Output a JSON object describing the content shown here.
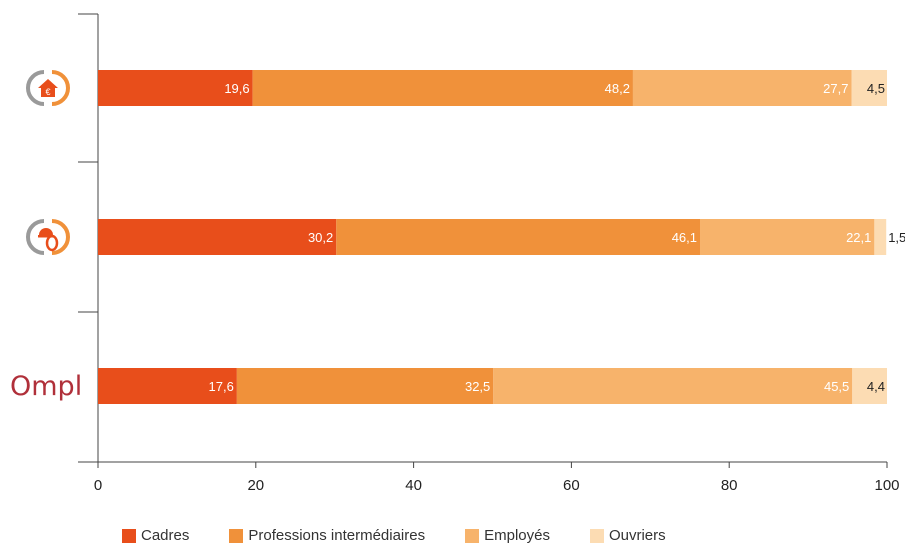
{
  "chart_data": {
    "type": "bar",
    "orientation": "horizontal",
    "stacked": true,
    "categories": [
      "logo-immobilier",
      "logo-ingenierie",
      "Ompl"
    ],
    "series": [
      {
        "name": "Cadres",
        "color": "#e84e1b",
        "values": [
          19.6,
          30.2,
          17.6
        ]
      },
      {
        "name": "Professions intermédiaires",
        "color": "#f0913a",
        "values": [
          48.2,
          46.1,
          32.5
        ]
      },
      {
        "name": "Employés",
        "color": "#f7b36b",
        "values": [
          27.7,
          22.1,
          45.5
        ]
      },
      {
        "name": "Ouvriers",
        "color": "#fcdcb3",
        "values": [
          4.5,
          1.5,
          4.4
        ]
      }
    ],
    "labels": [
      [
        "19,6",
        "48,2",
        "27,7",
        "4,5"
      ],
      [
        "30,2",
        "46,1",
        "22,1",
        "1,5"
      ],
      [
        "17,6",
        "32,5",
        "45,5",
        "4,4"
      ]
    ],
    "xlim": [
      0,
      100
    ],
    "xticks": [
      "0",
      "20",
      "40",
      "60",
      "80",
      "100"
    ],
    "grid": false,
    "legend_position": "bottom"
  },
  "category_icons": [
    "house-euro-icon",
    "engineer-helmet-icon",
    "ompl-logo"
  ],
  "ompl_logo_text": "Ompl"
}
